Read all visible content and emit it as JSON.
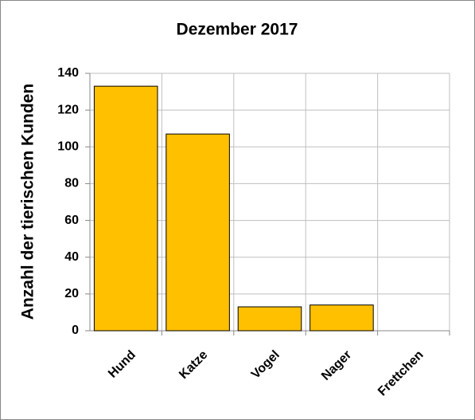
{
  "chart_data": {
    "type": "bar",
    "title": "Dezember 2017",
    "y_label": "Anzahl der tierischen Kunden",
    "categories": [
      "Hund",
      "Katze",
      "Vogel",
      "Nager",
      "Frettchen"
    ],
    "values": [
      133,
      107,
      13,
      14,
      0
    ],
    "color": "#ffc000",
    "ylim": [
      0,
      140
    ],
    "yticks": [
      0,
      20,
      40,
      60,
      80,
      100,
      120,
      140
    ],
    "grid": true
  }
}
